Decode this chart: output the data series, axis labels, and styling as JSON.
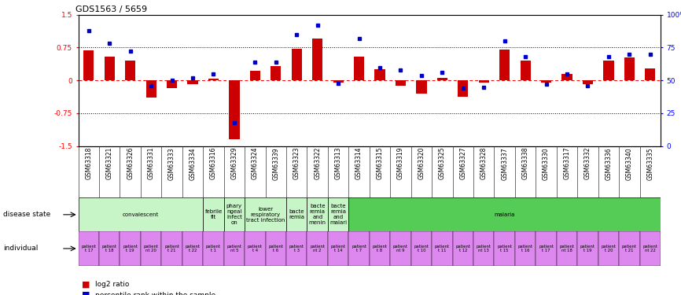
{
  "title": "GDS1563 / 5659",
  "samples": [
    "GSM63318",
    "GSM63321",
    "GSM63326",
    "GSM63331",
    "GSM63333",
    "GSM63334",
    "GSM63316",
    "GSM63329",
    "GSM63324",
    "GSM63339",
    "GSM63323",
    "GSM63322",
    "GSM63313",
    "GSM63314",
    "GSM63315",
    "GSM63319",
    "GSM63320",
    "GSM63325",
    "GSM63327",
    "GSM63328",
    "GSM63337",
    "GSM63338",
    "GSM63330",
    "GSM63317",
    "GSM63332",
    "GSM63336",
    "GSM63340",
    "GSM63335"
  ],
  "log2_ratio": [
    0.68,
    0.55,
    0.45,
    -0.4,
    -0.18,
    -0.08,
    0.04,
    -1.35,
    0.22,
    0.33,
    0.72,
    0.95,
    -0.05,
    0.55,
    0.25,
    -0.12,
    -0.3,
    0.05,
    -0.38,
    -0.05,
    0.7,
    0.45,
    -0.05,
    0.15,
    -0.08,
    0.45,
    0.52,
    0.28
  ],
  "percentile": [
    88,
    78,
    72,
    46,
    50,
    52,
    55,
    18,
    64,
    64,
    85,
    92,
    48,
    82,
    60,
    58,
    54,
    56,
    44,
    45,
    80,
    68,
    47,
    55,
    46,
    68,
    70,
    70
  ],
  "groups": [
    {
      "label": "convalescent",
      "start": 0,
      "end": 6,
      "color": "#c8f5c8"
    },
    {
      "label": "febrile\nfit",
      "start": 6,
      "end": 7,
      "color": "#c8f5c8"
    },
    {
      "label": "phary\nngeal\ninfect\non",
      "start": 7,
      "end": 8,
      "color": "#c8f5c8"
    },
    {
      "label": "lower\nrespiratory\ntract infection",
      "start": 8,
      "end": 10,
      "color": "#c8f5c8"
    },
    {
      "label": "bacte\nremia",
      "start": 10,
      "end": 11,
      "color": "#c8f5c8"
    },
    {
      "label": "bacte\nremia\nand\nmenin",
      "start": 11,
      "end": 12,
      "color": "#c8f5c8"
    },
    {
      "label": "bacte\nremia\nand\nmalari",
      "start": 12,
      "end": 13,
      "color": "#c8f5c8"
    },
    {
      "label": "malaria",
      "start": 13,
      "end": 28,
      "color": "#55cc55"
    }
  ],
  "individual_labels": [
    "patient\nt 17",
    "patient\nt 18",
    "patient\nt 19",
    "patient\nnt 20",
    "patient\nt 21",
    "patient\nt 22",
    "patient\nt 1",
    "patient\nnt 5",
    "patient\nt 4",
    "patient\nt 6",
    "patient\nt 3",
    "patient\nnt 2",
    "patient\nt 14",
    "patient\nt 7",
    "patient\nt 8",
    "patient\nnt 9",
    "patient\nt 10",
    "patient\nt 11",
    "patient\nt 12",
    "patient\nnt 13",
    "patient\nt 15",
    "patient\nt 16",
    "patient\nt 17",
    "patient\nnt 18",
    "patient\nt 19",
    "patient\nt 20",
    "patient\nt 21",
    "patient\nnt 22"
  ],
  "bar_color": "#CC0000",
  "dot_color": "#0000CC",
  "ind_color": "#dd88ee",
  "ylim": [
    -1.5,
    1.5
  ],
  "yticks_left": [
    -1.5,
    -0.75,
    0.0,
    0.75,
    1.5
  ],
  "hline_y": [
    -0.75,
    0.0,
    0.75
  ]
}
